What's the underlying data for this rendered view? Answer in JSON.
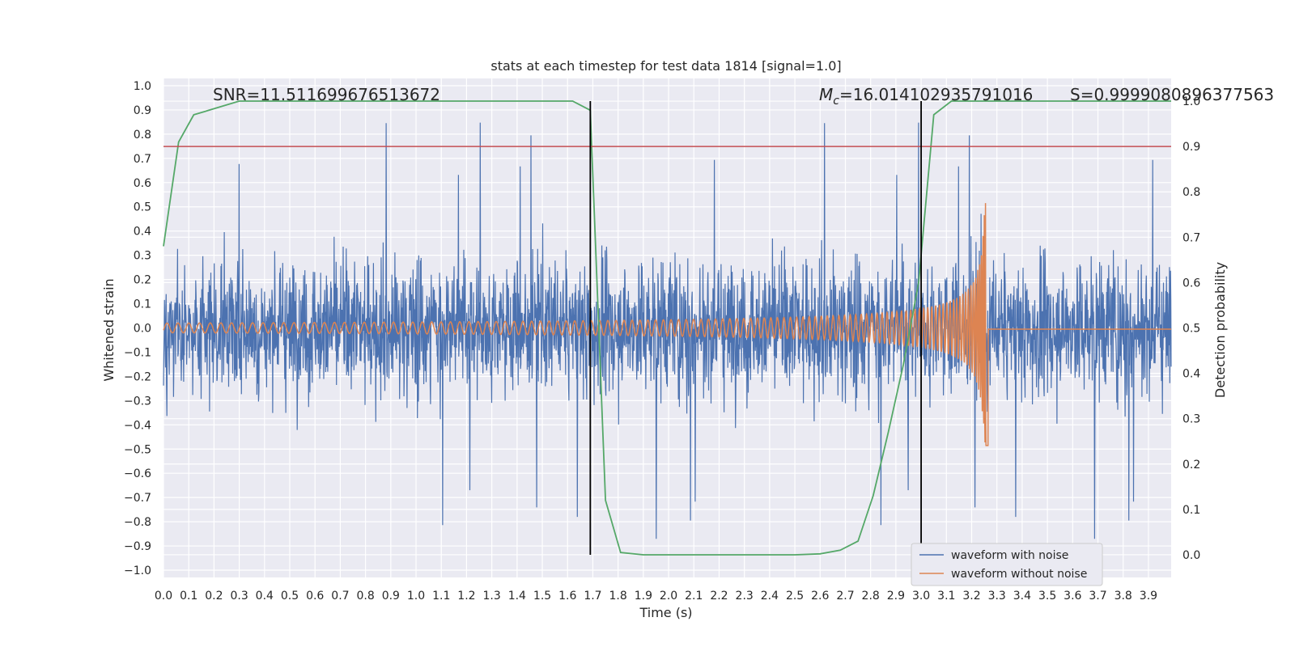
{
  "chart_data": {
    "type": "line",
    "title": "stats at each timestep for test data 1814 [signal=1.0]",
    "xlabel": "Time (s)",
    "ylabel": "Whitened strain",
    "y2label": "Detection probability",
    "xlim": [
      0.0,
      3.99
    ],
    "ylim": [
      -1.03,
      1.03
    ],
    "y2lim": [
      -0.05,
      1.05
    ],
    "x_ticks": [
      "0.0",
      "0.1",
      "0.2",
      "0.3",
      "0.4",
      "0.5",
      "0.6",
      "0.7",
      "0.8",
      "0.9",
      "1.0",
      "1.1",
      "1.2",
      "1.3",
      "1.4",
      "1.5",
      "1.6",
      "1.7",
      "1.8",
      "1.9",
      "2.0",
      "2.1",
      "2.2",
      "2.3",
      "2.4",
      "2.5",
      "2.6",
      "2.7",
      "2.8",
      "2.9",
      "3.0",
      "3.1",
      "3.2",
      "3.3",
      "3.4",
      "3.5",
      "3.6",
      "3.7",
      "3.8",
      "3.9"
    ],
    "y_ticks": [
      "1.0",
      "0.9",
      "0.8",
      "0.7",
      "0.6",
      "0.5",
      "0.4",
      "0.3",
      "0.2",
      "0.1",
      "0.0",
      "−0.1",
      "−0.2",
      "−0.3",
      "−0.4",
      "−0.5",
      "−0.6",
      "−0.7",
      "−0.8",
      "−0.9",
      "−1.0"
    ],
    "y2_ticks": [
      "1.0",
      "0.9",
      "0.8",
      "0.7",
      "0.6",
      "0.5",
      "0.4",
      "0.3",
      "0.2",
      "0.1",
      "0.0"
    ],
    "grid": true,
    "legend_position": "lower right",
    "threshold_line": {
      "axis": "right",
      "value": 0.9,
      "color": "#c44e52"
    },
    "vertical_lines": [
      1.69,
      3.0
    ],
    "annotations": {
      "snr": "SNR=11.511699676513672",
      "mc_symbol": "M",
      "mc_sub": "c",
      "mc_value": "=16.014102935791016",
      "s": "S=0.9999080896377563"
    },
    "series": [
      {
        "name": "waveform with noise",
        "color": "#4c72b0",
        "axis": "left",
        "noise_amplitude": 0.25,
        "peak_range": [
          -0.94,
          0.98
        ]
      },
      {
        "name": "waveform without noise",
        "color": "#dd8452",
        "axis": "left",
        "chirp_start_amplitude": 0.02,
        "chirp_peak_amplitude": 0.6,
        "chirp_peak_time": 3.26,
        "ringdown_level": -0.005
      },
      {
        "axis": "right",
        "color": "#55a868",
        "x": [
          0.0,
          0.06,
          0.12,
          0.18,
          0.3,
          0.42,
          0.6,
          1.0,
          1.4,
          1.62,
          1.69,
          1.75,
          1.81,
          1.9,
          2.1,
          2.5,
          2.6,
          2.68,
          2.75,
          2.81,
          2.87,
          2.93,
          2.99,
          3.05,
          3.12,
          3.2,
          3.5,
          3.99
        ],
        "y": [
          0.68,
          0.91,
          0.97,
          0.98,
          1.0,
          1.0,
          1.0,
          1.0,
          1.0,
          1.0,
          0.98,
          0.12,
          0.005,
          0.0,
          0.0,
          0.0,
          0.002,
          0.01,
          0.03,
          0.13,
          0.27,
          0.42,
          0.6,
          0.97,
          1.0,
          1.0,
          1.0,
          1.0
        ]
      }
    ]
  }
}
